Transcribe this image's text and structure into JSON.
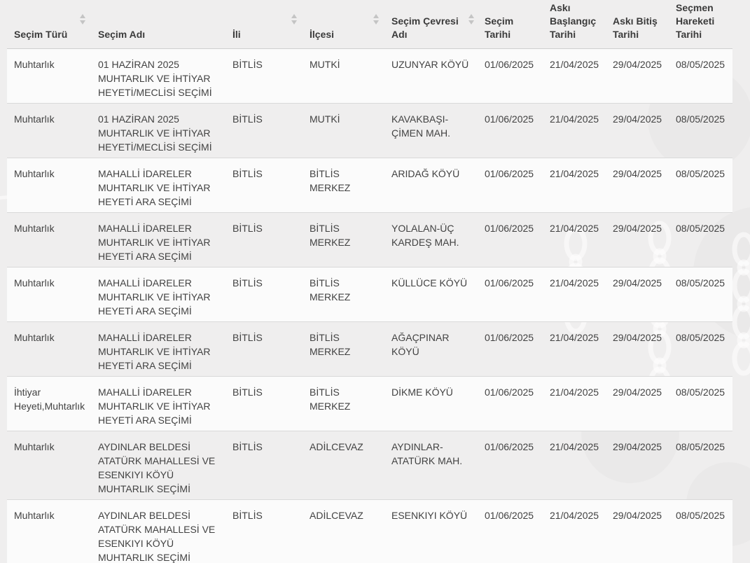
{
  "table": {
    "columns": [
      {
        "key": "secim-turu",
        "label": "Seçim Türü",
        "sortable": true
      },
      {
        "key": "secim-adi",
        "label": "Seçim Adı",
        "sortable": false
      },
      {
        "key": "ili",
        "label": "İli",
        "sortable": true
      },
      {
        "key": "ilcesi",
        "label": "İlçesi",
        "sortable": true
      },
      {
        "key": "secim-cevresi-adi",
        "label": "Seçim Çevresi Adı",
        "sortable": true
      },
      {
        "key": "secim-tarihi",
        "label": "Seçim\nTarihi",
        "sortable": false
      },
      {
        "key": "aski-baslangic-tarihi",
        "label": "Askı\nBaşlangıç\nTarihi",
        "sortable": false
      },
      {
        "key": "aski-bitis-tarihi",
        "label": "Askı Bitiş\nTarihi",
        "sortable": false
      },
      {
        "key": "secmen-hareketi-tarihi",
        "label": "Seçmen\nHareketi\nTarihi",
        "sortable": false
      }
    ],
    "rows": [
      [
        "Muhtarlık",
        "01 HAZİRAN 2025\nMUHTARLIK VE İHTİYAR\nHEYETİ/MECLİSİ SEÇİMİ",
        "BİTLİS",
        "MUTKİ",
        "UZUNYAR KÖYÜ",
        "01/06/2025",
        "21/04/2025",
        "29/04/2025",
        "08/05/2025"
      ],
      [
        "Muhtarlık",
        "01 HAZİRAN 2025\nMUHTARLIK VE İHTİYAR\nHEYETİ/MECLİSİ SEÇİMİ",
        "BİTLİS",
        "MUTKİ",
        "KAVAKBAŞI-\nÇİMEN MAH.",
        "01/06/2025",
        "21/04/2025",
        "29/04/2025",
        "08/05/2025"
      ],
      [
        "Muhtarlık",
        "MAHALLİ İDARELER\nMUHTARLIK VE İHTİYAR\nHEYETİ ARA SEÇİMİ",
        "BİTLİS",
        "BİTLİS MERKEZ",
        "ARIDAĞ KÖYÜ",
        "01/06/2025",
        "21/04/2025",
        "29/04/2025",
        "08/05/2025"
      ],
      [
        "Muhtarlık",
        "MAHALLİ İDARELER\nMUHTARLIK VE İHTİYAR\nHEYETİ ARA SEÇİMİ",
        "BİTLİS",
        "BİTLİS MERKEZ",
        "YOLALAN-ÜÇ\nKARDEŞ MAH.",
        "01/06/2025",
        "21/04/2025",
        "29/04/2025",
        "08/05/2025"
      ],
      [
        "Muhtarlık",
        "MAHALLİ İDARELER\nMUHTARLIK VE İHTİYAR\nHEYETİ ARA SEÇİMİ",
        "BİTLİS",
        "BİTLİS MERKEZ",
        "KÜLLÜCE KÖYÜ",
        "01/06/2025",
        "21/04/2025",
        "29/04/2025",
        "08/05/2025"
      ],
      [
        "Muhtarlık",
        "MAHALLİ İDARELER\nMUHTARLIK VE İHTİYAR\nHEYETİ ARA SEÇİMİ",
        "BİTLİS",
        "BİTLİS MERKEZ",
        "AĞAÇPINAR KÖYÜ",
        "01/06/2025",
        "21/04/2025",
        "29/04/2025",
        "08/05/2025"
      ],
      [
        "İhtiyar\nHeyeti,Muhtarlık",
        "MAHALLİ İDARELER\nMUHTARLIK VE İHTİYAR\nHEYETİ ARA SEÇİMİ",
        "BİTLİS",
        "BİTLİS MERKEZ",
        "DİKME KÖYÜ",
        "01/06/2025",
        "21/04/2025",
        "29/04/2025",
        "08/05/2025"
      ],
      [
        "Muhtarlık",
        "AYDINLAR BELDESİ\nATATÜRK MAHALLESİ VE\nESENKIYI KÖYÜ\nMUHTARLIK SEÇİMİ",
        "BİTLİS",
        "ADİLCEVAZ",
        "AYDINLAR-\nATATÜRK MAH.",
        "01/06/2025",
        "21/04/2025",
        "29/04/2025",
        "08/05/2025"
      ],
      [
        "Muhtarlık",
        "AYDINLAR BELDESİ\nATATÜRK MAHALLESİ VE\nESENKIYI KÖYÜ\nMUHTARLIK SEÇİMİ",
        "BİTLİS",
        "ADİLCEVAZ",
        "ESENKIYI KÖYÜ",
        "01/06/2025",
        "21/04/2025",
        "29/04/2025",
        "08/05/2025"
      ]
    ]
  },
  "icons": {
    "sort_unsorted": "sort-arrows-icon",
    "background": "chain-links-watermark"
  },
  "colors": {
    "page_background": "#efeeee",
    "row_stripe": "#fbfbfb",
    "row_separator": "#d9d9d9",
    "header_text": "#3b3b3b",
    "body_text": "#424242",
    "sort_icon": "#c4c4c4"
  }
}
